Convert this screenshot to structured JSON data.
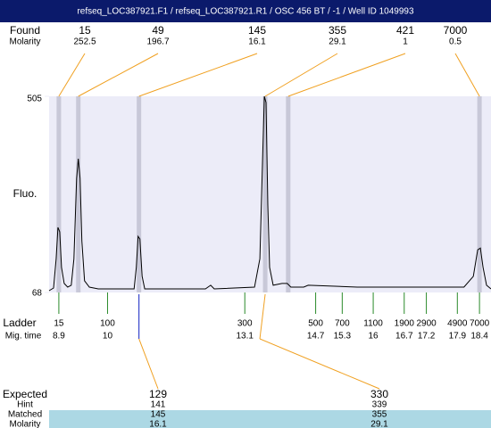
{
  "chart_data": {
    "type": "line",
    "title": "refseq_LOC387921.F1 / refseq_LOC387921.R1 / OSC 456 BT / -1 / Well ID 1049993",
    "ylabel": "Fluo.",
    "ylim": [
      68,
      505
    ],
    "yticks": [
      68,
      505
    ],
    "xlim": [
      8.68,
      18.66
    ],
    "trace": {
      "x": [
        8.68,
        8.78,
        8.84,
        8.88,
        8.92,
        8.96,
        9.02,
        9.1,
        9.18,
        9.24,
        9.3,
        9.34,
        9.38,
        9.42,
        9.48,
        9.59,
        9.79,
        10.6,
        10.65,
        10.69,
        10.73,
        10.78,
        10.84,
        12.21,
        12.33,
        12.41,
        13.32,
        13.44,
        13.5,
        13.54,
        13.58,
        13.62,
        13.66,
        13.74,
        13.94,
        14.06,
        14.14,
        14.43,
        14.53,
        15.64,
        18.05,
        18.26,
        18.36,
        18.42,
        18.48,
        18.56,
        18.66
      ],
      "y": [
        72,
        78,
        143,
        213,
        203,
        124,
        88,
        80,
        84,
        143,
        322,
        366,
        322,
        183,
        94,
        80,
        76,
        76,
        124,
        193,
        187,
        104,
        76,
        76,
        84,
        76,
        80,
        143,
        362,
        505,
        491,
        263,
        124,
        84,
        88,
        88,
        80,
        80,
        84,
        80,
        80,
        104,
        163,
        167,
        124,
        84,
        76
      ]
    },
    "found": {
      "label": "Found",
      "molarity_label": "Molarity",
      "sizes": [
        15,
        49,
        145,
        355,
        421,
        7000
      ],
      "molarity": [
        252.5,
        196.7,
        16.1,
        29.1,
        1,
        0.5
      ],
      "times": [
        8.9,
        9.34,
        10.71,
        13.56,
        14.08,
        18.4
      ]
    },
    "ladder": {
      "label": "Ladder",
      "time_label": "Mig. time",
      "sizes": [
        15,
        100,
        300,
        500,
        700,
        1100,
        1900,
        2900,
        4900,
        7000
      ],
      "times": [
        8.9,
        10,
        13.1,
        14.7,
        15.3,
        16,
        16.7,
        17.2,
        17.9,
        18.4
      ]
    },
    "expected": {
      "label": "Expected",
      "hint_label": "Hint",
      "matched_label": "Matched",
      "molarity_label": "Molarity",
      "expected": [
        129,
        330
      ],
      "hint": [
        141,
        339
      ],
      "matched": [
        145,
        355
      ],
      "molarity": [
        16.1,
        29.1
      ]
    }
  }
}
